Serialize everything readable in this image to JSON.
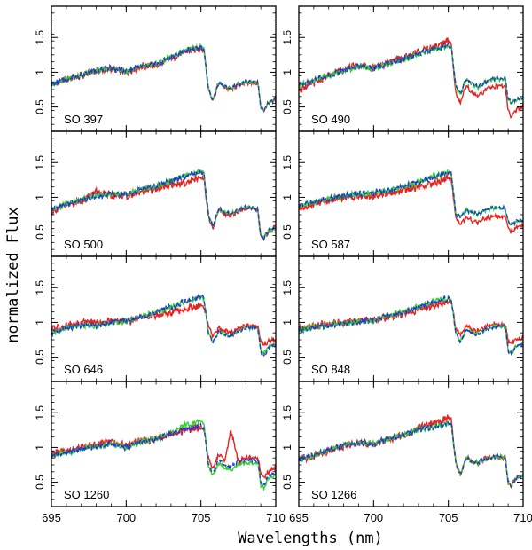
{
  "figure": {
    "ylabel": "normalized Flux",
    "xlabel": "Wavelengths (nm)"
  },
  "chart_data": {
    "type": "line",
    "layout": "4x2 grid of panels sharing axes",
    "xlabel": "Wavelengths (nm)",
    "ylabel": "normalized Flux",
    "xlim": [
      695,
      710
    ],
    "ylim": [
      0.15,
      1.95
    ],
    "x_ticks": [
      695,
      700,
      705,
      710
    ],
    "y_ticks": [
      0.5,
      1,
      1.5
    ],
    "series_colors": [
      "#e8231f",
      "#2dd62d",
      "#2337d6"
    ],
    "x_nodes": [
      695,
      696,
      697,
      698,
      699,
      700,
      701,
      702,
      703,
      704,
      705,
      705.2,
      705.5,
      705.8,
      706.2,
      706.6,
      707,
      707.5,
      708,
      708.8,
      709,
      709.2,
      709.5,
      710
    ],
    "panels": [
      {
        "label": "SO 397",
        "series": [
          {
            "color": "#e8231f",
            "y": [
              0.82,
              0.9,
              0.95,
              1.02,
              1.05,
              1.0,
              1.08,
              1.1,
              1.2,
              1.3,
              1.35,
              1.32,
              0.75,
              0.6,
              0.85,
              0.78,
              0.75,
              0.82,
              0.85,
              0.85,
              0.5,
              0.45,
              0.55,
              0.6
            ]
          },
          {
            "color": "#2dd62d",
            "y": [
              0.83,
              0.9,
              0.96,
              1.03,
              1.06,
              1.01,
              1.09,
              1.11,
              1.22,
              1.32,
              1.37,
              1.34,
              0.76,
              0.6,
              0.86,
              0.79,
              0.76,
              0.83,
              0.86,
              0.86,
              0.5,
              0.46,
              0.56,
              0.61
            ]
          },
          {
            "color": "#2337d6",
            "y": [
              0.83,
              0.9,
              0.96,
              1.03,
              1.06,
              1.01,
              1.09,
              1.11,
              1.21,
              1.31,
              1.36,
              1.33,
              0.76,
              0.6,
              0.86,
              0.79,
              0.76,
              0.83,
              0.86,
              0.86,
              0.5,
              0.46,
              0.56,
              0.61
            ]
          }
        ]
      },
      {
        "label": "SO 490",
        "series": [
          {
            "color": "#e8231f",
            "y": [
              0.75,
              0.85,
              0.95,
              1.05,
              1.1,
              1.05,
              1.15,
              1.2,
              1.3,
              1.35,
              1.45,
              1.4,
              0.7,
              0.55,
              0.8,
              0.7,
              0.65,
              0.75,
              0.8,
              0.8,
              0.45,
              0.35,
              0.45,
              0.5
            ]
          },
          {
            "color": "#2dd62d",
            "y": [
              0.8,
              0.88,
              0.95,
              1.02,
              1.08,
              1.05,
              1.12,
              1.18,
              1.26,
              1.32,
              1.38,
              1.35,
              0.8,
              0.68,
              0.9,
              0.82,
              0.78,
              0.86,
              0.9,
              0.9,
              0.62,
              0.55,
              0.6,
              0.62
            ]
          },
          {
            "color": "#2337d6",
            "y": [
              0.81,
              0.89,
              0.96,
              1.03,
              1.09,
              1.06,
              1.13,
              1.19,
              1.27,
              1.33,
              1.39,
              1.36,
              0.81,
              0.69,
              0.91,
              0.83,
              0.79,
              0.87,
              0.91,
              0.91,
              0.63,
              0.56,
              0.61,
              0.63
            ]
          }
        ]
      },
      {
        "label": "SO 500",
        "series": [
          {
            "color": "#e8231f",
            "y": [
              0.8,
              0.88,
              0.95,
              1.08,
              1.02,
              1.02,
              1.08,
              1.12,
              1.18,
              1.22,
              1.28,
              1.26,
              0.72,
              0.55,
              0.82,
              0.76,
              0.74,
              0.8,
              0.84,
              0.82,
              0.42,
              0.4,
              0.5,
              0.58
            ]
          },
          {
            "color": "#2dd62d",
            "y": [
              0.82,
              0.9,
              0.97,
              1.02,
              1.05,
              1.04,
              1.12,
              1.16,
              1.24,
              1.32,
              1.38,
              1.35,
              0.75,
              0.58,
              0.84,
              0.78,
              0.76,
              0.82,
              0.86,
              0.84,
              0.45,
              0.42,
              0.52,
              0.55
            ]
          },
          {
            "color": "#2337d6",
            "y": [
              0.82,
              0.9,
              0.97,
              1.02,
              1.05,
              1.04,
              1.12,
              1.16,
              1.24,
              1.31,
              1.36,
              1.33,
              0.75,
              0.58,
              0.84,
              0.78,
              0.76,
              0.82,
              0.86,
              0.84,
              0.45,
              0.42,
              0.52,
              0.55
            ]
          }
        ]
      },
      {
        "label": "SO 587",
        "series": [
          {
            "color": "#e8231f",
            "y": [
              0.85,
              0.9,
              0.95,
              1.0,
              1.02,
              1.02,
              1.06,
              1.1,
              1.15,
              1.2,
              1.28,
              1.26,
              0.7,
              0.62,
              0.72,
              0.66,
              0.63,
              0.7,
              0.72,
              0.72,
              0.55,
              0.5,
              0.55,
              0.6
            ]
          },
          {
            "color": "#2dd62d",
            "y": [
              0.88,
              0.93,
              0.98,
              1.02,
              1.05,
              1.06,
              1.1,
              1.15,
              1.22,
              1.3,
              1.36,
              1.34,
              0.76,
              0.72,
              0.82,
              0.78,
              0.76,
              0.82,
              0.85,
              0.84,
              0.65,
              0.6,
              0.65,
              0.68
            ]
          },
          {
            "color": "#2337d6",
            "y": [
              0.88,
              0.93,
              0.98,
              1.02,
              1.05,
              1.06,
              1.1,
              1.15,
              1.22,
              1.3,
              1.36,
              1.34,
              0.76,
              0.72,
              0.82,
              0.78,
              0.76,
              0.82,
              0.85,
              0.84,
              0.65,
              0.6,
              0.65,
              0.68
            ]
          }
        ]
      },
      {
        "label": "SO 646",
        "series": [
          {
            "color": "#e8231f",
            "y": [
              0.9,
              0.95,
              1.0,
              1.0,
              1.02,
              1.02,
              1.06,
              1.1,
              1.15,
              1.2,
              1.25,
              1.23,
              0.95,
              0.8,
              0.92,
              0.88,
              0.85,
              0.92,
              0.95,
              0.95,
              0.72,
              0.68,
              0.72,
              0.75
            ]
          },
          {
            "color": "#2dd62d",
            "y": [
              0.85,
              0.92,
              0.96,
              0.95,
              1.0,
              1.02,
              1.08,
              1.15,
              1.22,
              1.3,
              1.36,
              1.34,
              0.85,
              0.72,
              0.88,
              0.82,
              0.8,
              0.88,
              0.92,
              0.92,
              0.6,
              0.55,
              0.65,
              0.7
            ]
          },
          {
            "color": "#2337d6",
            "y": [
              0.85,
              0.92,
              0.96,
              0.95,
              1.0,
              1.02,
              1.08,
              1.15,
              1.22,
              1.31,
              1.38,
              1.35,
              0.85,
              0.72,
              0.88,
              0.82,
              0.8,
              0.88,
              0.92,
              0.92,
              0.58,
              0.52,
              0.62,
              0.68
            ]
          }
        ]
      },
      {
        "label": "SO 848",
        "series": [
          {
            "color": "#e8231f",
            "y": [
              0.9,
              0.95,
              0.98,
              1.0,
              1.02,
              1.03,
              1.08,
              1.12,
              1.18,
              1.24,
              1.3,
              1.28,
              0.92,
              0.82,
              0.95,
              0.9,
              0.88,
              0.94,
              0.97,
              0.96,
              0.75,
              0.7,
              0.75,
              0.78
            ]
          },
          {
            "color": "#2dd62d",
            "y": [
              0.88,
              0.93,
              0.96,
              0.98,
              1.01,
              1.03,
              1.1,
              1.15,
              1.22,
              1.3,
              1.35,
              1.33,
              0.85,
              0.72,
              0.9,
              0.85,
              0.83,
              0.9,
              0.94,
              0.94,
              0.6,
              0.55,
              0.65,
              0.7
            ]
          },
          {
            "color": "#2337d6",
            "y": [
              0.88,
              0.93,
              0.96,
              0.98,
              1.01,
              1.03,
              1.1,
              1.15,
              1.22,
              1.29,
              1.34,
              1.32,
              0.85,
              0.72,
              0.9,
              0.85,
              0.83,
              0.9,
              0.94,
              0.94,
              0.6,
              0.55,
              0.65,
              0.7
            ]
          }
        ]
      },
      {
        "label": "SO 1260",
        "series": [
          {
            "color": "#e8231f",
            "y": [
              0.9,
              0.95,
              1.0,
              1.05,
              1.08,
              1.02,
              1.1,
              1.12,
              1.2,
              1.25,
              1.28,
              1.26,
              0.85,
              0.7,
              0.9,
              0.82,
              1.25,
              0.8,
              0.85,
              0.85,
              0.62,
              0.58,
              0.65,
              0.7
            ]
          },
          {
            "color": "#2dd62d",
            "y": [
              0.88,
              0.92,
              0.98,
              1.02,
              1.06,
              1.0,
              1.08,
              1.12,
              1.22,
              1.32,
              1.38,
              1.35,
              0.72,
              0.6,
              0.78,
              0.7,
              0.68,
              0.75,
              0.78,
              0.78,
              0.45,
              0.4,
              0.55,
              0.62
            ]
          },
          {
            "color": "#2337d6",
            "y": [
              0.88,
              0.92,
              0.98,
              1.02,
              1.06,
              1.0,
              1.08,
              1.12,
              1.2,
              1.27,
              1.3,
              1.28,
              0.76,
              0.64,
              0.82,
              0.75,
              0.72,
              0.8,
              0.82,
              0.82,
              0.5,
              0.45,
              0.58,
              0.65
            ]
          }
        ]
      },
      {
        "label": "SO 1266",
        "series": [
          {
            "color": "#e8231f",
            "y": [
              0.82,
              0.88,
              0.95,
              1.02,
              1.06,
              1.04,
              1.12,
              1.18,
              1.28,
              1.34,
              1.42,
              1.4,
              0.78,
              0.6,
              0.85,
              0.8,
              0.78,
              0.84,
              0.87,
              0.86,
              0.5,
              0.45,
              0.55,
              0.6
            ]
          },
          {
            "color": "#2dd62d",
            "y": [
              0.83,
              0.89,
              0.96,
              1.03,
              1.07,
              1.05,
              1.13,
              1.18,
              1.26,
              1.3,
              1.34,
              1.32,
              0.78,
              0.6,
              0.85,
              0.8,
              0.78,
              0.84,
              0.87,
              0.86,
              0.5,
              0.45,
              0.55,
              0.6
            ]
          },
          {
            "color": "#2337d6",
            "y": [
              0.83,
              0.89,
              0.96,
              1.03,
              1.07,
              1.05,
              1.13,
              1.18,
              1.26,
              1.3,
              1.34,
              1.32,
              0.78,
              0.6,
              0.85,
              0.8,
              0.78,
              0.84,
              0.87,
              0.86,
              0.5,
              0.45,
              0.55,
              0.6
            ]
          }
        ]
      }
    ]
  }
}
